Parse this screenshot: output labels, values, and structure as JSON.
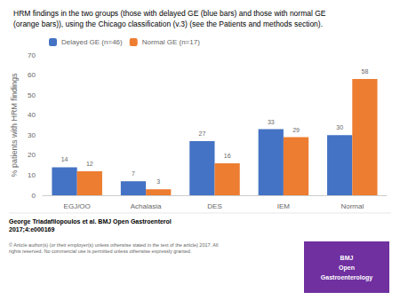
{
  "chart_data": {
    "type": "bar",
    "title": "HRM findings in the two groups (those with delayed GE (blue bars) and those with normal GE\n(orange bars)), using the Chicago classification (v.3) (see the Patients and methods section).",
    "categories": [
      "EGJ/OO",
      "Achalasia",
      "DES",
      "IEM",
      "Normal"
    ],
    "series": [
      {
        "name": "Delayed GE (n=46)",
        "color": "#4472C4",
        "values": [
          14,
          7,
          27,
          33,
          30
        ]
      },
      {
        "name": "Normal GE (n=17)",
        "color": "#ED7D31",
        "values": [
          12,
          3,
          16,
          29,
          58
        ]
      }
    ],
    "ylabel": "% patients with HRM findings",
    "ylim": [
      0,
      70
    ],
    "yticks": [
      0,
      10,
      20,
      30,
      40,
      50,
      60,
      70
    ],
    "grid": false,
    "legend": "upper left",
    "data_labels": true,
    "annotations": [
      {
        "text": "George Triadafilopoulos et al. BMJ Open Gastroenterol\n2017;4:e000169"
      },
      {
        "text": "© Article author(s) (or their employer(s) unless otherwise stated in the text of the article) 2017. All\nrights reserved. No commercial use is permitted unless otherwise expressly granted."
      },
      {
        "text": "BMJ\nOpen\nGastroenterology",
        "color": "#7030A0"
      }
    ]
  }
}
